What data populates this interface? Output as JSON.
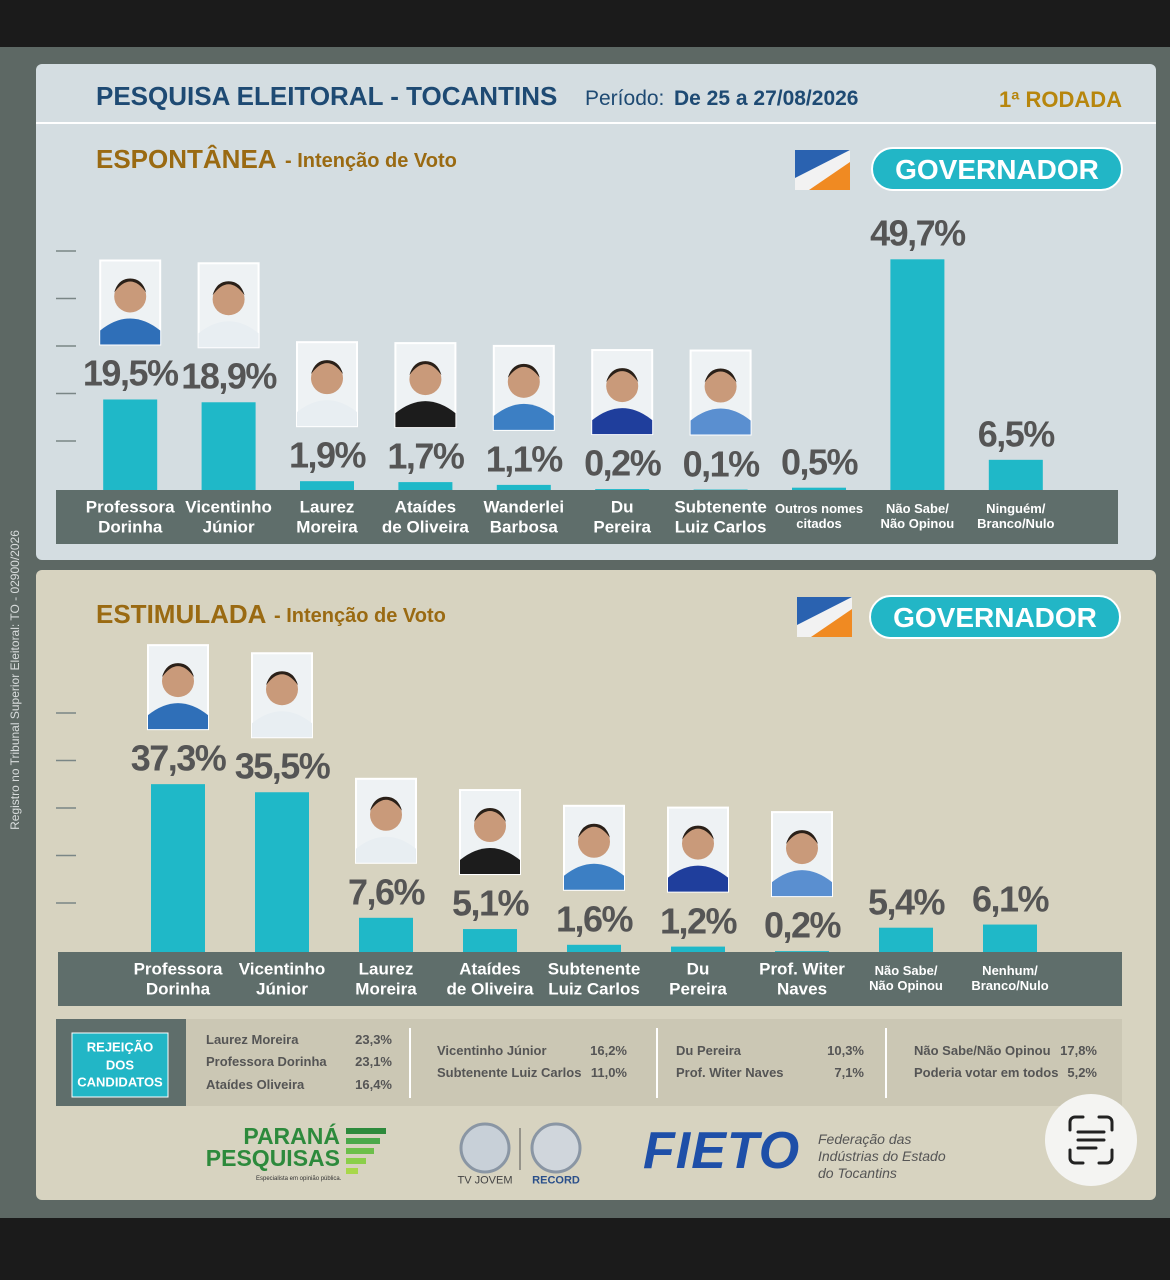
{
  "header": {
    "title": "PESQUISA ELEITORAL - TOCANTINS",
    "period_label": "Período:",
    "period": "De 25 a 27/08/2026",
    "round": "1ª RODADA"
  },
  "side_note": "Registro no Tribunal Superior Eleitoral: TO - 02900/2026",
  "chart_data": [
    {
      "type": "bar",
      "title": "ESPONTÂNEA",
      "subtitle": "- Intenção de Voto",
      "badge": "GOVERNADOR",
      "categories": [
        "Professora\nDorinha",
        "Vicentinho\nJúnior",
        "Laurez\nMoreira",
        "Ataídes\nde Oliveira",
        "Wanderlei\nBarbosa",
        "Du\nPereira",
        "Subtenente\nLuiz Carlos",
        "Outros nomes\ncitados",
        "Não Sabe/\nNão Opinou",
        "Ninguém/\nBranco/Nulo"
      ],
      "values": [
        19.5,
        18.9,
        1.9,
        1.7,
        1.1,
        0.2,
        0.1,
        0.5,
        49.7,
        6.5
      ],
      "value_labels": [
        "19,5%",
        "18,9%",
        "1,9%",
        "1,7%",
        "1,1%",
        "0,2%",
        "0,1%",
        "0,5%",
        "49,7%",
        "6,5%"
      ],
      "color": "#1fb8c8",
      "ylim": [
        0,
        53
      ]
    },
    {
      "type": "bar",
      "title": "ESTIMULADA",
      "subtitle": "- Intenção de Voto",
      "badge": "GOVERNADOR",
      "categories": [
        "Professora\nDorinha",
        "Vicentinho\nJúnior",
        "Laurez\nMoreira",
        "Ataídes\nde Oliveira",
        "Subtenente\nLuiz Carlos",
        "Du\nPereira",
        "Prof. Witer\nNaves",
        "Não Sabe/\nNão Opinou",
        "Nenhum/\nBranco/Nulo"
      ],
      "values": [
        37.3,
        35.5,
        7.6,
        5.1,
        1.6,
        1.2,
        0.2,
        5.4,
        6.1
      ],
      "value_labels": [
        "37,3%",
        "35,5%",
        "7,6%",
        "5,1%",
        "1,6%",
        "1,2%",
        "0,2%",
        "5,4%",
        "6,1%"
      ],
      "color": "#1fb8c8",
      "ylim": [
        0,
        50
      ]
    }
  ],
  "rejection": {
    "title": "REJEIÇÃO\nDOS\nCANDIDATOS",
    "columns": [
      [
        {
          "name": "Laurez Moreira",
          "value": "23,3%"
        },
        {
          "name": "Professora Dorinha",
          "value": "23,1%"
        },
        {
          "name": "Ataídes Oliveira",
          "value": "16,4%"
        }
      ],
      [
        {
          "name": "Vicentinho Júnior",
          "value": "16,2%"
        },
        {
          "name": "Subtenente Luiz Carlos",
          "value": "11,0%"
        }
      ],
      [
        {
          "name": "Du Pereira",
          "value": "10,3%"
        },
        {
          "name": "Prof. Witer Naves",
          "value": "7,1%"
        }
      ],
      [
        {
          "name": "Não Sabe/Não Opinou",
          "value": "17,8%"
        },
        {
          "name": "Poderia votar em todos",
          "value": "5,2%"
        }
      ]
    ]
  },
  "footer": {
    "parana": "PARANÁ\nPESQUISAS",
    "parana_tagline": "Especialista em opinião pública.",
    "tvjovem": "TV JOVEM",
    "record": "RECORD",
    "fieto": "FIETO",
    "fieto_name": "Federação das\nIndústrias do Estado\ndo Tocantins"
  }
}
